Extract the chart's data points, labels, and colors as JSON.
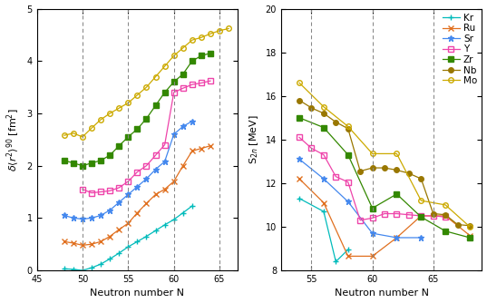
{
  "left": {
    "xlabel": "Neutron number N",
    "xlim": [
      46.5,
      67
    ],
    "ylim": [
      0,
      5
    ],
    "xticks": [
      45,
      50,
      55,
      60,
      65
    ],
    "yticks": [
      0,
      1,
      2,
      3,
      4,
      5
    ],
    "vlines": [
      50,
      55,
      60,
      65
    ],
    "series": {
      "Kr": {
        "N": [
          48,
          49,
          50,
          51,
          52,
          53,
          54,
          55,
          56,
          57,
          58,
          59,
          60,
          61,
          62
        ],
        "y": [
          0.03,
          0.02,
          0.0,
          0.05,
          0.12,
          0.22,
          0.33,
          0.45,
          0.55,
          0.65,
          0.76,
          0.87,
          0.97,
          1.1,
          1.23
        ],
        "color": "#00bbbb",
        "marker": "+",
        "ms": 5
      },
      "Ru": {
        "N": [
          48,
          49,
          50,
          51,
          52,
          53,
          54,
          55,
          56,
          57,
          58,
          59,
          60,
          61,
          62,
          63,
          64
        ],
        "y": [
          0.55,
          0.52,
          0.48,
          0.5,
          0.55,
          0.65,
          0.78,
          0.9,
          1.1,
          1.28,
          1.45,
          1.55,
          1.7,
          2.0,
          2.28,
          2.33,
          2.38
        ],
        "color": "#e07020",
        "marker": "x",
        "ms": 4
      },
      "Sr": {
        "N": [
          48,
          49,
          50,
          51,
          52,
          53,
          54,
          55,
          56,
          57,
          58,
          59,
          60,
          61,
          62
        ],
        "y": [
          1.05,
          1.0,
          0.98,
          1.0,
          1.05,
          1.15,
          1.3,
          1.45,
          1.6,
          1.75,
          1.93,
          2.08,
          2.6,
          2.75,
          2.85
        ],
        "color": "#4488ee",
        "marker": "*",
        "ms": 5
      },
      "Y": {
        "N": [
          50,
          51,
          52,
          53,
          54,
          55,
          56,
          57,
          58,
          59,
          60,
          61,
          62,
          63,
          64
        ],
        "y": [
          1.55,
          1.48,
          1.5,
          1.52,
          1.58,
          1.7,
          1.88,
          2.0,
          2.2,
          2.4,
          3.4,
          3.48,
          3.55,
          3.58,
          3.62
        ],
        "color": "#ee44aa",
        "marker": "s",
        "ms": 4,
        "markerfill": "none"
      },
      "Zr": {
        "N": [
          48,
          49,
          50,
          51,
          52,
          53,
          54,
          55,
          56,
          57,
          58,
          59,
          60,
          61,
          62,
          63,
          64
        ],
        "y": [
          2.1,
          2.05,
          2.0,
          2.05,
          2.1,
          2.2,
          2.38,
          2.55,
          2.7,
          2.9,
          3.15,
          3.4,
          3.6,
          3.75,
          4.0,
          4.1,
          4.15
        ],
        "color": "#338800",
        "marker": "s",
        "ms": 4
      },
      "Mo": {
        "N": [
          48,
          49,
          50,
          51,
          52,
          53,
          54,
          55,
          56,
          57,
          58,
          59,
          60,
          61,
          62,
          63,
          64,
          65,
          66
        ],
        "y": [
          2.58,
          2.62,
          2.55,
          2.72,
          2.88,
          3.0,
          3.1,
          3.2,
          3.35,
          3.5,
          3.7,
          3.9,
          4.1,
          4.25,
          4.4,
          4.45,
          4.52,
          4.58,
          4.62
        ],
        "color": "#ccaa00",
        "marker": "o",
        "ms": 4,
        "markerfill": "none"
      }
    }
  },
  "right": {
    "xlabel": "Neutron number N",
    "xlim": [
      52.5,
      69
    ],
    "ylim": [
      8,
      20
    ],
    "xticks": [
      55,
      60,
      65
    ],
    "yticks": [
      8,
      10,
      12,
      14,
      16,
      18,
      20
    ],
    "vlines": [
      55,
      60,
      65
    ],
    "series": {
      "Kr": {
        "N": [
          54,
          56,
          57,
          58
        ],
        "y": [
          11.3,
          10.7,
          8.4,
          8.95
        ],
        "color": "#00bbbb",
        "marker": "+",
        "ms": 5
      },
      "Ru": {
        "N": [
          54,
          56,
          58,
          60,
          62,
          64,
          66,
          68
        ],
        "y": [
          12.2,
          11.1,
          8.65,
          8.65,
          9.5,
          10.5,
          10.5,
          9.6
        ],
        "color": "#e07020",
        "marker": "x",
        "ms": 4
      },
      "Sr": {
        "N": [
          54,
          56,
          58,
          60,
          62,
          64
        ],
        "y": [
          13.1,
          12.2,
          11.15,
          9.7,
          9.5,
          9.5
        ],
        "color": "#4488ee",
        "marker": "*",
        "ms": 5
      },
      "Y": {
        "N": [
          54,
          55,
          56,
          57,
          58,
          59,
          60,
          61,
          62,
          63,
          64,
          65,
          66
        ],
        "y": [
          14.1,
          13.6,
          13.3,
          12.3,
          12.05,
          10.3,
          10.4,
          10.6,
          10.6,
          10.55,
          10.5,
          10.5,
          10.45
        ],
        "color": "#ee44aa",
        "marker": "s",
        "ms": 4,
        "markerfill": "none"
      },
      "Zr": {
        "N": [
          54,
          56,
          58,
          60,
          62,
          64,
          66,
          68
        ],
        "y": [
          15.0,
          14.55,
          13.3,
          10.85,
          11.5,
          10.45,
          9.8,
          9.5
        ],
        "color": "#338800",
        "marker": "s",
        "ms": 4
      },
      "Nb": {
        "N": [
          54,
          55,
          56,
          57,
          58,
          59,
          60,
          61,
          62,
          63,
          64,
          65,
          66,
          67,
          68
        ],
        "y": [
          15.8,
          15.45,
          15.2,
          14.8,
          14.5,
          12.55,
          12.7,
          12.7,
          12.6,
          12.45,
          12.2,
          10.6,
          10.55,
          10.1,
          10.05
        ],
        "color": "#997700",
        "marker": "o",
        "ms": 4
      },
      "Mo": {
        "N": [
          54,
          56,
          58,
          60,
          62,
          64,
          66,
          68
        ],
        "y": [
          16.6,
          15.5,
          14.6,
          13.35,
          13.35,
          11.2,
          11.0,
          10.0
        ],
        "color": "#ccaa00",
        "marker": "o",
        "ms": 4,
        "markerfill": "none"
      }
    },
    "legend_order": [
      "Kr",
      "Ru",
      "Sr",
      "Y",
      "Zr",
      "Nb",
      "Mo"
    ]
  },
  "background_color": "#ffffff"
}
